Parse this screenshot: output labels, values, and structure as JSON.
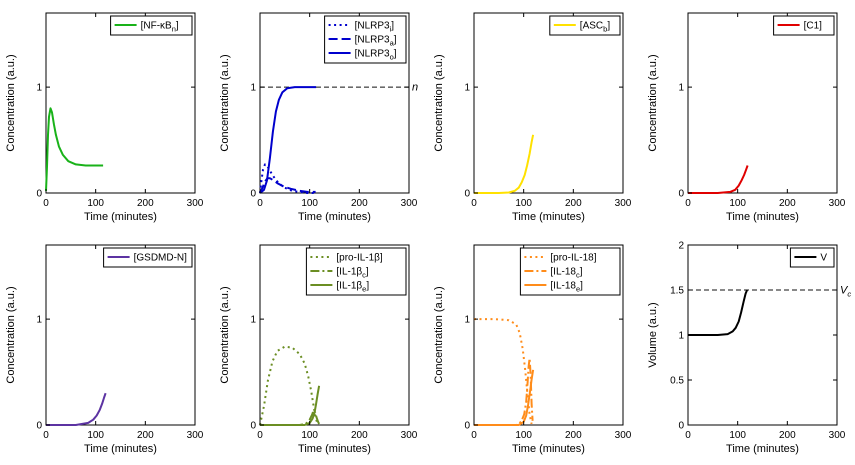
{
  "figure": {
    "background": "#ffffff",
    "rows": 2,
    "cols": 4
  },
  "chart_data": [
    {
      "type": "line",
      "title": "",
      "xlabel": "Time (minutes)",
      "ylabel": "Concentration (a.u.)",
      "xlim": [
        0,
        300
      ],
      "ylim": [
        0,
        1.7
      ],
      "xticks": [
        0,
        100,
        200,
        300
      ],
      "yticks": [
        0,
        1
      ],
      "grid": false,
      "legend_position": "top-right",
      "series": [
        {
          "name": "[NF-κB_{n}]",
          "color": "#19b219",
          "style": "solid",
          "x": [
            0,
            2,
            4,
            6,
            9,
            12,
            16,
            20,
            26,
            34,
            45,
            60,
            80,
            100,
            115
          ],
          "y": [
            0.02,
            0.25,
            0.55,
            0.72,
            0.8,
            0.76,
            0.65,
            0.55,
            0.44,
            0.36,
            0.3,
            0.27,
            0.26,
            0.26,
            0.26
          ]
        }
      ],
      "annotations": []
    },
    {
      "type": "line",
      "title": "",
      "xlabel": "Time (minutes)",
      "ylabel": "Concentration (a.u.)",
      "xlim": [
        0,
        300
      ],
      "ylim": [
        0,
        1.7
      ],
      "xticks": [
        0,
        100,
        200,
        300
      ],
      "yticks": [
        0,
        1
      ],
      "grid": false,
      "legend_position": "top-right",
      "series": [
        {
          "name": "[NLRP3_{i}]",
          "color": "#0000cd",
          "style": "dotted",
          "x": [
            0,
            3,
            6,
            10,
            14,
            20,
            28,
            38,
            50,
            65,
            80,
            95,
            110
          ],
          "y": [
            0,
            0.12,
            0.22,
            0.27,
            0.26,
            0.21,
            0.15,
            0.09,
            0.05,
            0.02,
            0.01,
            0,
            0
          ]
        },
        {
          "name": "[NLRP3_{a}]",
          "color": "#0000cd",
          "style": "dashed",
          "x": [
            0,
            5,
            10,
            15,
            20,
            27,
            36,
            48,
            62,
            80,
            95,
            112
          ],
          "y": [
            0,
            0.05,
            0.11,
            0.14,
            0.14,
            0.12,
            0.09,
            0.06,
            0.04,
            0.02,
            0.01,
            0.01
          ]
        },
        {
          "name": "[NLRP3_{o}]",
          "color": "#0000cd",
          "style": "solid",
          "x": [
            0,
            8,
            14,
            20,
            26,
            32,
            38,
            45,
            55,
            70,
            90,
            113
          ],
          "y": [
            0,
            0.03,
            0.12,
            0.33,
            0.58,
            0.77,
            0.88,
            0.95,
            0.99,
            1,
            1,
            1
          ]
        }
      ],
      "annotations": [
        {
          "y": 1,
          "label": "n"
        }
      ]
    },
    {
      "type": "line",
      "title": "",
      "xlabel": "Time (minutes)",
      "ylabel": "Concentration (a.u.)",
      "xlim": [
        0,
        300
      ],
      "ylim": [
        0,
        1.7
      ],
      "xticks": [
        0,
        100,
        200,
        300
      ],
      "yticks": [
        0,
        1
      ],
      "grid": false,
      "legend_position": "top-right",
      "series": [
        {
          "name": "[ASC_{b}]",
          "color": "#ffe100",
          "style": "solid",
          "x": [
            0,
            50,
            70,
            82,
            90,
            96,
            102,
            107,
            112,
            116,
            119
          ],
          "y": [
            0,
            0,
            0.005,
            0.02,
            0.05,
            0.1,
            0.17,
            0.26,
            0.37,
            0.48,
            0.55
          ]
        }
      ],
      "annotations": []
    },
    {
      "type": "line",
      "title": "",
      "xlabel": "Time (minutes)",
      "ylabel": "Concentration (a.u.)",
      "xlim": [
        0,
        300
      ],
      "ylim": [
        0,
        1.7
      ],
      "xticks": [
        0,
        100,
        200,
        300
      ],
      "yticks": [
        0,
        1
      ],
      "grid": false,
      "legend_position": "top-right",
      "series": [
        {
          "name": "[C1]",
          "color": "#e00000",
          "style": "solid",
          "x": [
            0,
            60,
            85,
            95,
            102,
            108,
            113,
            117,
            120
          ],
          "y": [
            0,
            0,
            0.01,
            0.03,
            0.07,
            0.12,
            0.17,
            0.22,
            0.26
          ]
        }
      ],
      "annotations": []
    },
    {
      "type": "line",
      "title": "",
      "xlabel": "Time (minutes)",
      "ylabel": "Concentration (a.u.)",
      "xlim": [
        0,
        300
      ],
      "ylim": [
        0,
        1.7
      ],
      "xticks": [
        0,
        100,
        200,
        300
      ],
      "yticks": [
        0,
        1
      ],
      "grid": false,
      "legend_position": "top-right",
      "series": [
        {
          "name": "[GSDMD-N]",
          "color": "#5c33a2",
          "style": "solid",
          "x": [
            0,
            60,
            85,
            95,
            102,
            108,
            113,
            117,
            120
          ],
          "y": [
            0,
            0,
            0.02,
            0.05,
            0.09,
            0.14,
            0.2,
            0.26,
            0.3
          ]
        }
      ],
      "annotations": []
    },
    {
      "type": "line",
      "title": "",
      "xlabel": "Time (minutes)",
      "ylabel": "Concentration (a.u.)",
      "xlim": [
        0,
        300
      ],
      "ylim": [
        0,
        1.7
      ],
      "xticks": [
        0,
        100,
        200,
        300
      ],
      "yticks": [
        0,
        1
      ],
      "grid": false,
      "legend_position": "top-right",
      "series": [
        {
          "name": "[pro-IL-1β]",
          "color": "#6b8e23",
          "style": "dotted",
          "x": [
            0,
            8,
            16,
            25,
            35,
            50,
            65,
            80,
            90,
            97,
            103,
            108,
            112,
            116
          ],
          "y": [
            0,
            0.18,
            0.42,
            0.6,
            0.7,
            0.74,
            0.73,
            0.67,
            0.58,
            0.46,
            0.32,
            0.18,
            0.07,
            0.01
          ]
        },
        {
          "name": "[IL-1β_{c}]",
          "color": "#6b8e23",
          "style": "dashdot",
          "x": [
            0,
            80,
            92,
            100,
            105,
            108,
            111,
            114,
            117,
            119
          ],
          "y": [
            0,
            0,
            0.01,
            0.05,
            0.1,
            0.14,
            0.12,
            0.07,
            0.03,
            0.01
          ]
        },
        {
          "name": "[IL-1β_{e}]",
          "color": "#6b8e23",
          "style": "solid",
          "x": [
            0,
            90,
            100,
            106,
            110,
            113,
            116,
            119
          ],
          "y": [
            0,
            0,
            0.02,
            0.06,
            0.12,
            0.2,
            0.29,
            0.37
          ]
        }
      ],
      "annotations": []
    },
    {
      "type": "line",
      "title": "",
      "xlabel": "Time (minutes)",
      "ylabel": "Concentration (a.u.)",
      "xlim": [
        0,
        300
      ],
      "ylim": [
        0,
        1.7
      ],
      "xticks": [
        0,
        100,
        200,
        300
      ],
      "yticks": [
        0,
        1
      ],
      "grid": false,
      "legend_position": "top-right",
      "series": [
        {
          "name": "[pro-IL-18]",
          "color": "#ff8c1a",
          "style": "dotted",
          "x": [
            0,
            40,
            70,
            85,
            92,
            98,
            103,
            108,
            112,
            116
          ],
          "y": [
            1,
            1,
            0.99,
            0.95,
            0.87,
            0.72,
            0.52,
            0.28,
            0.1,
            0.01
          ]
        },
        {
          "name": "[IL-18_{c}]",
          "color": "#ff8c1a",
          "style": "dashdot",
          "x": [
            0,
            85,
            95,
            101,
            105,
            108,
            110,
            112,
            114,
            116,
            118
          ],
          "y": [
            0,
            0,
            0.03,
            0.1,
            0.22,
            0.4,
            0.55,
            0.63,
            0.48,
            0.2,
            0.04
          ]
        },
        {
          "name": "[IL-18_{e}]",
          "color": "#ff8c1a",
          "style": "solid",
          "x": [
            0,
            90,
            100,
            105,
            109,
            113,
            116,
            119
          ],
          "y": [
            0,
            0,
            0.03,
            0.09,
            0.19,
            0.32,
            0.43,
            0.52
          ]
        }
      ],
      "annotations": []
    },
    {
      "type": "line",
      "title": "",
      "xlabel": "Time (minutes)",
      "ylabel": "Volume (a.u.)",
      "xlim": [
        0,
        300
      ],
      "ylim": [
        0,
        2
      ],
      "xticks": [
        0,
        100,
        200,
        300
      ],
      "yticks": [
        0,
        0.5,
        1,
        1.5,
        2
      ],
      "grid": false,
      "legend_position": "top-right",
      "series": [
        {
          "name": "V",
          "color": "#000000",
          "style": "solid",
          "x": [
            0,
            30,
            60,
            80,
            90,
            96,
            102,
            107,
            112,
            116,
            119
          ],
          "y": [
            1,
            1,
            1,
            1.01,
            1.04,
            1.08,
            1.15,
            1.25,
            1.37,
            1.46,
            1.5
          ]
        }
      ],
      "annotations": [
        {
          "y": 1.5,
          "label": "V_{c}"
        }
      ]
    }
  ]
}
